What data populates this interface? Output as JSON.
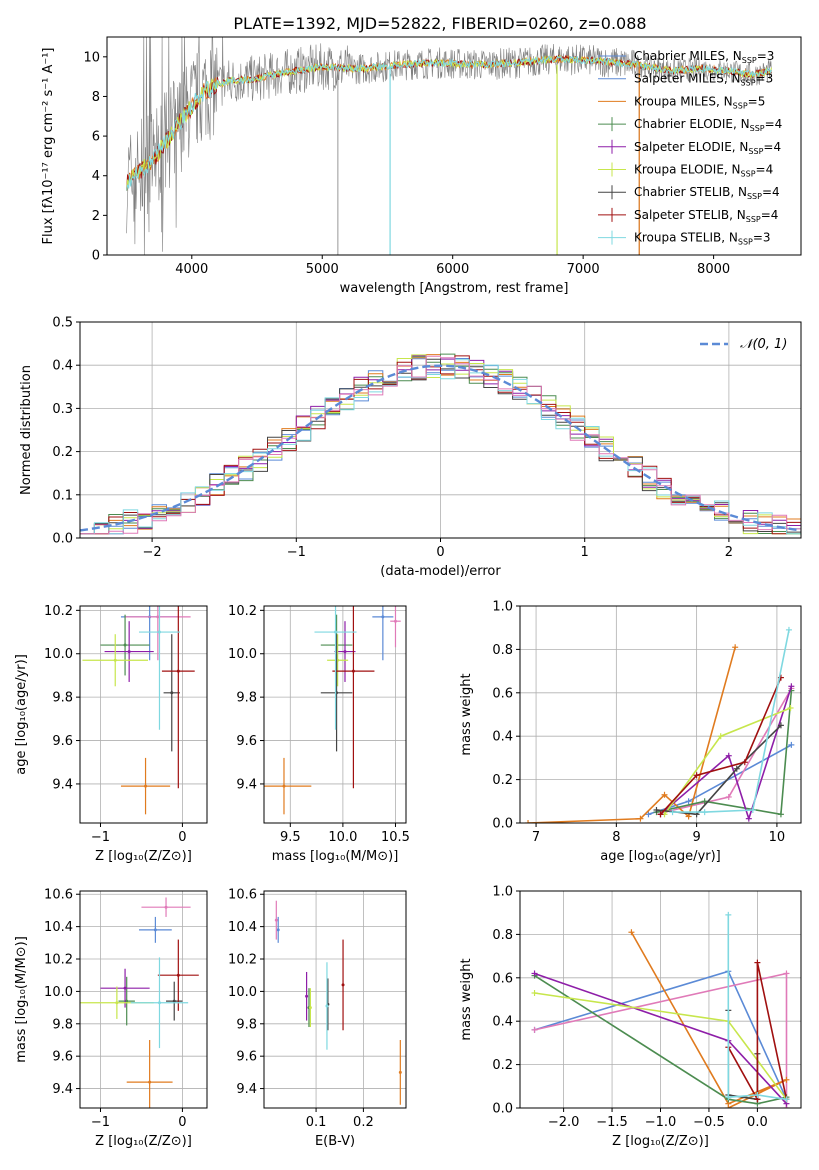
{
  "colors": {
    "blue": "#5b8ad6",
    "orange": "#e07b1f",
    "green": "#4c8c50",
    "purple": "#8e1ea8",
    "yellowgreen": "#c7e64c",
    "darkgray": "#444444",
    "red": "#a01010",
    "cyan": "#7fd8e0",
    "pink": "#e07ab8",
    "spectrum": "#7f7f7f",
    "grid": "#b0b0b0"
  },
  "chart_data": [
    {
      "id": "spectrum",
      "type": "line",
      "title": "PLATE=1392, MJD=52822, FIBERID=0260, z=0.088",
      "xlabel": "wavelength [Angstrom, rest frame]",
      "ylabel": "Flux [fλ10⁻¹⁷ erg cm⁻² s⁻¹ A⁻¹]",
      "xlim": [
        3350,
        8670
      ],
      "ylim": [
        0,
        11
      ],
      "xticks": [
        4000,
        5000,
        6000,
        7000,
        8000
      ],
      "yticks": [
        0,
        2,
        4,
        6,
        8,
        10
      ],
      "grid": false,
      "legend_position": "right",
      "legend": [
        {
          "label": "Chabrier MILES, N",
          "sub": "SSP",
          "tail": "=3",
          "color": "blue"
        },
        {
          "label": "Salpeter MILES, N",
          "sub": "SSP",
          "tail": "=3",
          "color": "blue"
        },
        {
          "label": "Kroupa MILES, N",
          "sub": "SSP",
          "tail": "=5",
          "color": "orange"
        },
        {
          "label": "Chabrier ELODIE, N",
          "sub": "SSP",
          "tail": "=4",
          "color": "green"
        },
        {
          "label": "Salpeter ELODIE, N",
          "sub": "SSP",
          "tail": "=4",
          "color": "purple"
        },
        {
          "label": "Kroupa ELODIE, N",
          "sub": "SSP",
          "tail": "=4",
          "color": "yellowgreen"
        },
        {
          "label": "Chabrier STELIB, N",
          "sub": "SSP",
          "tail": "=4",
          "color": "darkgray"
        },
        {
          "label": "Salpeter STELIB, N",
          "sub": "SSP",
          "tail": "=4",
          "color": "red"
        },
        {
          "label": "Kroupa STELIB, N",
          "sub": "SSP",
          "tail": "=3",
          "color": "cyan"
        }
      ],
      "continuum": {
        "x": [
          3500,
          3600,
          3700,
          3800,
          3900,
          4000,
          4100,
          4300,
          4500,
          4700,
          5000,
          5300,
          5600,
          5900,
          6200,
          6500,
          6800,
          7100,
          7400,
          7700,
          7900,
          8100,
          8300,
          8450
        ],
        "y": [
          3.7,
          4.2,
          4.8,
          5.7,
          6.6,
          7.5,
          8.3,
          8.8,
          8.9,
          9.2,
          9.5,
          9.4,
          9.6,
          9.7,
          9.6,
          9.7,
          9.9,
          9.8,
          9.6,
          9.3,
          9.4,
          9.3,
          9.1,
          9.3
        ]
      },
      "spikes_down": [
        5120,
        5520,
        6800,
        7430
      ]
    },
    {
      "id": "residuals",
      "type": "line",
      "xlabel": "(data-model)/error",
      "ylabel": "Normed distribution",
      "xlim": [
        -2.5,
        2.5
      ],
      "ylim": [
        0,
        0.5
      ],
      "xticks": [
        -2,
        -1,
        0,
        1,
        2
      ],
      "yticks": [
        0.0,
        0.1,
        0.2,
        0.3,
        0.4,
        0.5
      ],
      "grid": true,
      "legend": [
        {
          "label": "𝒩(0, 1)",
          "color": "blue",
          "style": "dashed"
        }
      ],
      "bin_width": 0.1
    },
    {
      "id": "z-age",
      "type": "scatter",
      "xlabel": "Z [log₁₀(Z/Z⊙)]",
      "ylabel": "age  [log₁₀(age/yr)]",
      "xlim": [
        -1.25,
        0.3
      ],
      "ylim": [
        9.22,
        10.22
      ],
      "xticks": [
        -1,
        0
      ],
      "yticks": [
        9.4,
        9.6,
        9.8,
        10.0,
        10.2
      ],
      "grid": true,
      "points": [
        {
          "x": -0.4,
          "y": 10.17,
          "ex": 0.35,
          "ey": 0.2,
          "color": "blue"
        },
        {
          "x": -0.3,
          "y": 10.17,
          "ex": 0.4,
          "ey": 0.2,
          "color": "pink"
        },
        {
          "x": -0.45,
          "y": 9.39,
          "ex": 0.3,
          "ey": 0.13,
          "color": "orange"
        },
        {
          "x": -0.7,
          "y": 10.04,
          "ex": 0.3,
          "ey": 0.14,
          "color": "green"
        },
        {
          "x": -0.65,
          "y": 10.01,
          "ex": 0.3,
          "ey": 0.14,
          "color": "purple"
        },
        {
          "x": -0.82,
          "y": 9.97,
          "ex": 0.4,
          "ey": 0.12,
          "color": "yellowgreen"
        },
        {
          "x": -0.13,
          "y": 9.82,
          "ex": 0.1,
          "ey": 0.27,
          "color": "darkgray"
        },
        {
          "x": -0.05,
          "y": 9.92,
          "ex": 0.2,
          "ey": 0.54,
          "color": "red"
        },
        {
          "x": -0.28,
          "y": 10.1,
          "ex": 0.25,
          "ey": 0.45,
          "color": "cyan"
        }
      ]
    },
    {
      "id": "mass-age",
      "type": "scatter",
      "xlabel": "mass [log₁₀(M/M⊙)]",
      "ylabel": "",
      "xlim": [
        9.25,
        10.6
      ],
      "ylim": [
        9.22,
        10.22
      ],
      "xticks": [
        9.5,
        10.0,
        10.5
      ],
      "yticks": [
        9.4,
        9.6,
        9.8,
        10.0,
        10.2
      ],
      "grid": true,
      "points": [
        {
          "x": 10.38,
          "y": 10.17,
          "ex": 0.1,
          "ey": 0.2,
          "color": "blue"
        },
        {
          "x": 10.5,
          "y": 10.15,
          "ex": 0.05,
          "ey": 0.12,
          "color": "pink"
        },
        {
          "x": 9.44,
          "y": 9.39,
          "ex": 0.26,
          "ey": 0.13,
          "color": "orange"
        },
        {
          "x": 9.94,
          "y": 10.04,
          "ex": 0.15,
          "ey": 0.14,
          "color": "green"
        },
        {
          "x": 10.02,
          "y": 10.01,
          "ex": 0.1,
          "ey": 0.14,
          "color": "purple"
        },
        {
          "x": 9.95,
          "y": 9.97,
          "ex": 0.1,
          "ey": 0.12,
          "color": "yellowgreen"
        },
        {
          "x": 9.94,
          "y": 9.82,
          "ex": 0.15,
          "ey": 0.27,
          "color": "darkgray"
        },
        {
          "x": 10.1,
          "y": 9.92,
          "ex": 0.2,
          "ey": 0.54,
          "color": "red"
        },
        {
          "x": 9.93,
          "y": 10.1,
          "ex": 0.2,
          "ey": 0.45,
          "color": "cyan"
        }
      ]
    },
    {
      "id": "age-weight",
      "type": "line",
      "xlabel": "age  [log₁₀(age/yr)]",
      "ylabel": "mass weight",
      "xlim": [
        6.8,
        10.3
      ],
      "ylim": [
        0,
        1
      ],
      "xticks": [
        7,
        8,
        9,
        10
      ],
      "yticks": [
        0.0,
        0.2,
        0.4,
        0.6,
        0.8,
        1.0
      ],
      "grid": true,
      "series": [
        {
          "color": "blue",
          "x": [
            8.4,
            8.9,
            10.18
          ],
          "y": [
            0.04,
            0.1,
            0.36
          ]
        },
        {
          "color": "pink",
          "x": [
            8.6,
            9.4,
            10.18
          ],
          "y": [
            0.05,
            0.12,
            0.62
          ]
        },
        {
          "color": "orange",
          "x": [
            6.9,
            8.3,
            8.6,
            8.9,
            9.48
          ],
          "y": [
            0.0,
            0.02,
            0.13,
            0.03,
            0.81
          ]
        },
        {
          "color": "green",
          "x": [
            8.5,
            9.1,
            10.05,
            10.18
          ],
          "y": [
            0.05,
            0.1,
            0.04,
            0.61
          ]
        },
        {
          "color": "purple",
          "x": [
            8.55,
            9.4,
            9.65,
            10.18
          ],
          "y": [
            0.04,
            0.31,
            0.02,
            0.63
          ]
        },
        {
          "color": "yellowgreen",
          "x": [
            8.6,
            9.3,
            10.17
          ],
          "y": [
            0.04,
            0.4,
            0.53
          ]
        },
        {
          "color": "darkgray",
          "x": [
            8.5,
            9.0,
            9.5,
            10.05
          ],
          "y": [
            0.06,
            0.04,
            0.25,
            0.45
          ]
        },
        {
          "color": "red",
          "x": [
            8.55,
            9.0,
            9.6,
            10.05
          ],
          "y": [
            0.04,
            0.22,
            0.28,
            0.67
          ]
        },
        {
          "color": "cyan",
          "x": [
            8.7,
            9.1,
            9.7,
            10.15
          ],
          "y": [
            0.05,
            0.05,
            0.06,
            0.89
          ]
        }
      ]
    },
    {
      "id": "z-mass",
      "type": "scatter",
      "xlabel": "Z [log₁₀(Z/Z⊙)]",
      "ylabel": "mass [log₁₀(M/M⊙)]",
      "xlim": [
        -1.25,
        0.3
      ],
      "ylim": [
        9.28,
        10.62
      ],
      "xticks": [
        -1,
        0
      ],
      "yticks": [
        9.4,
        9.6,
        9.8,
        10.0,
        10.2,
        10.4,
        10.6
      ],
      "grid": true,
      "points": [
        {
          "x": -0.33,
          "y": 10.38,
          "ex": 0.2,
          "ey": 0.08,
          "color": "blue"
        },
        {
          "x": -0.2,
          "y": 10.52,
          "ex": 0.3,
          "ey": 0.06,
          "color": "pink"
        },
        {
          "x": -0.4,
          "y": 9.44,
          "ex": 0.28,
          "ey": 0.26,
          "color": "orange"
        },
        {
          "x": -0.68,
          "y": 9.94,
          "ex": 0.1,
          "ey": 0.15,
          "color": "green"
        },
        {
          "x": -0.7,
          "y": 10.02,
          "ex": 0.3,
          "ey": 0.12,
          "color": "purple"
        },
        {
          "x": -0.8,
          "y": 9.93,
          "ex": 0.45,
          "ey": 0.1,
          "color": "yellowgreen"
        },
        {
          "x": -0.1,
          "y": 9.94,
          "ex": 0.1,
          "ey": 0.12,
          "color": "darkgray"
        },
        {
          "x": -0.05,
          "y": 10.1,
          "ex": 0.25,
          "ey": 0.22,
          "color": "red"
        },
        {
          "x": -0.28,
          "y": 9.93,
          "ex": 0.35,
          "ey": 0.28,
          "color": "cyan"
        }
      ]
    },
    {
      "id": "ebv-mass",
      "type": "scatter",
      "xlabel": "E(B-V)",
      "ylabel": "",
      "xlim": [
        -0.01,
        0.29
      ],
      "ylim": [
        9.28,
        10.62
      ],
      "xticks": [
        0.1,
        0.2
      ],
      "yticks": [
        9.4,
        9.6,
        9.8,
        10.0,
        10.2,
        10.4,
        10.6
      ],
      "grid": true,
      "points": [
        {
          "x": 0.02,
          "y": 10.38,
          "ex": 0,
          "ey": 0.08,
          "color": "blue"
        },
        {
          "x": 0.016,
          "y": 10.44,
          "ex": 0,
          "ey": 0.12,
          "color": "pink"
        },
        {
          "x": 0.278,
          "y": 9.5,
          "ex": 0,
          "ey": 0.2,
          "color": "orange"
        },
        {
          "x": 0.085,
          "y": 9.9,
          "ex": 0,
          "ey": 0.12,
          "color": "green"
        },
        {
          "x": 0.08,
          "y": 9.97,
          "ex": 0,
          "ey": 0.15,
          "color": "purple"
        },
        {
          "x": 0.088,
          "y": 9.9,
          "ex": 0,
          "ey": 0.12,
          "color": "yellowgreen"
        },
        {
          "x": 0.125,
          "y": 9.92,
          "ex": 0,
          "ey": 0.16,
          "color": "darkgray"
        },
        {
          "x": 0.157,
          "y": 10.04,
          "ex": 0,
          "ey": 0.28,
          "color": "red"
        },
        {
          "x": 0.123,
          "y": 9.91,
          "ex": 0,
          "ey": 0.27,
          "color": "cyan"
        }
      ]
    },
    {
      "id": "z-weight",
      "type": "line",
      "xlabel": "Z [log₁₀(Z/Z⊙)]",
      "ylabel": "mass weight",
      "xlim": [
        -2.45,
        0.45
      ],
      "ylim": [
        0,
        1
      ],
      "xticks": [
        -2.0,
        -1.5,
        -1.0,
        -0.5,
        0.0
      ],
      "yticks": [
        0.0,
        0.2,
        0.4,
        0.6,
        0.8,
        1.0
      ],
      "grid": true,
      "series": [
        {
          "color": "blue",
          "x": [
            -2.3,
            -0.3,
            0.3
          ],
          "y": [
            0.36,
            0.63,
            0.04
          ]
        },
        {
          "color": "pink",
          "x": [
            -2.3,
            0.3,
            0.3
          ],
          "y": [
            0.36,
            0.62,
            0.0
          ]
        },
        {
          "color": "orange",
          "x": [
            -1.3,
            -0.3,
            0.3,
            -0.3
          ],
          "y": [
            0.81,
            0.02,
            0.13,
            0.0
          ]
        },
        {
          "color": "green",
          "x": [
            -2.3,
            -0.3,
            0.0,
            0.3
          ],
          "y": [
            0.61,
            0.04,
            0.02,
            0.05
          ]
        },
        {
          "color": "purple",
          "x": [
            -2.3,
            -0.3,
            0.3
          ],
          "y": [
            0.62,
            0.31,
            0.02
          ]
        },
        {
          "color": "yellowgreen",
          "x": [
            -2.3,
            -0.3,
            0.3
          ],
          "y": [
            0.53,
            0.4,
            0.04
          ]
        },
        {
          "color": "darkgray",
          "x": [
            -0.3,
            -0.3,
            0.0,
            0.0
          ],
          "y": [
            0.45,
            0.06,
            0.04,
            0.25
          ]
        },
        {
          "color": "red",
          "x": [
            -0.3,
            0.0,
            0.0,
            0.3
          ],
          "y": [
            0.28,
            0.04,
            0.67,
            0.04
          ]
        },
        {
          "color": "cyan",
          "x": [
            -0.3,
            -0.3,
            0.0,
            0.3
          ],
          "y": [
            0.89,
            0.05,
            0.06,
            0.04
          ]
        }
      ]
    }
  ]
}
